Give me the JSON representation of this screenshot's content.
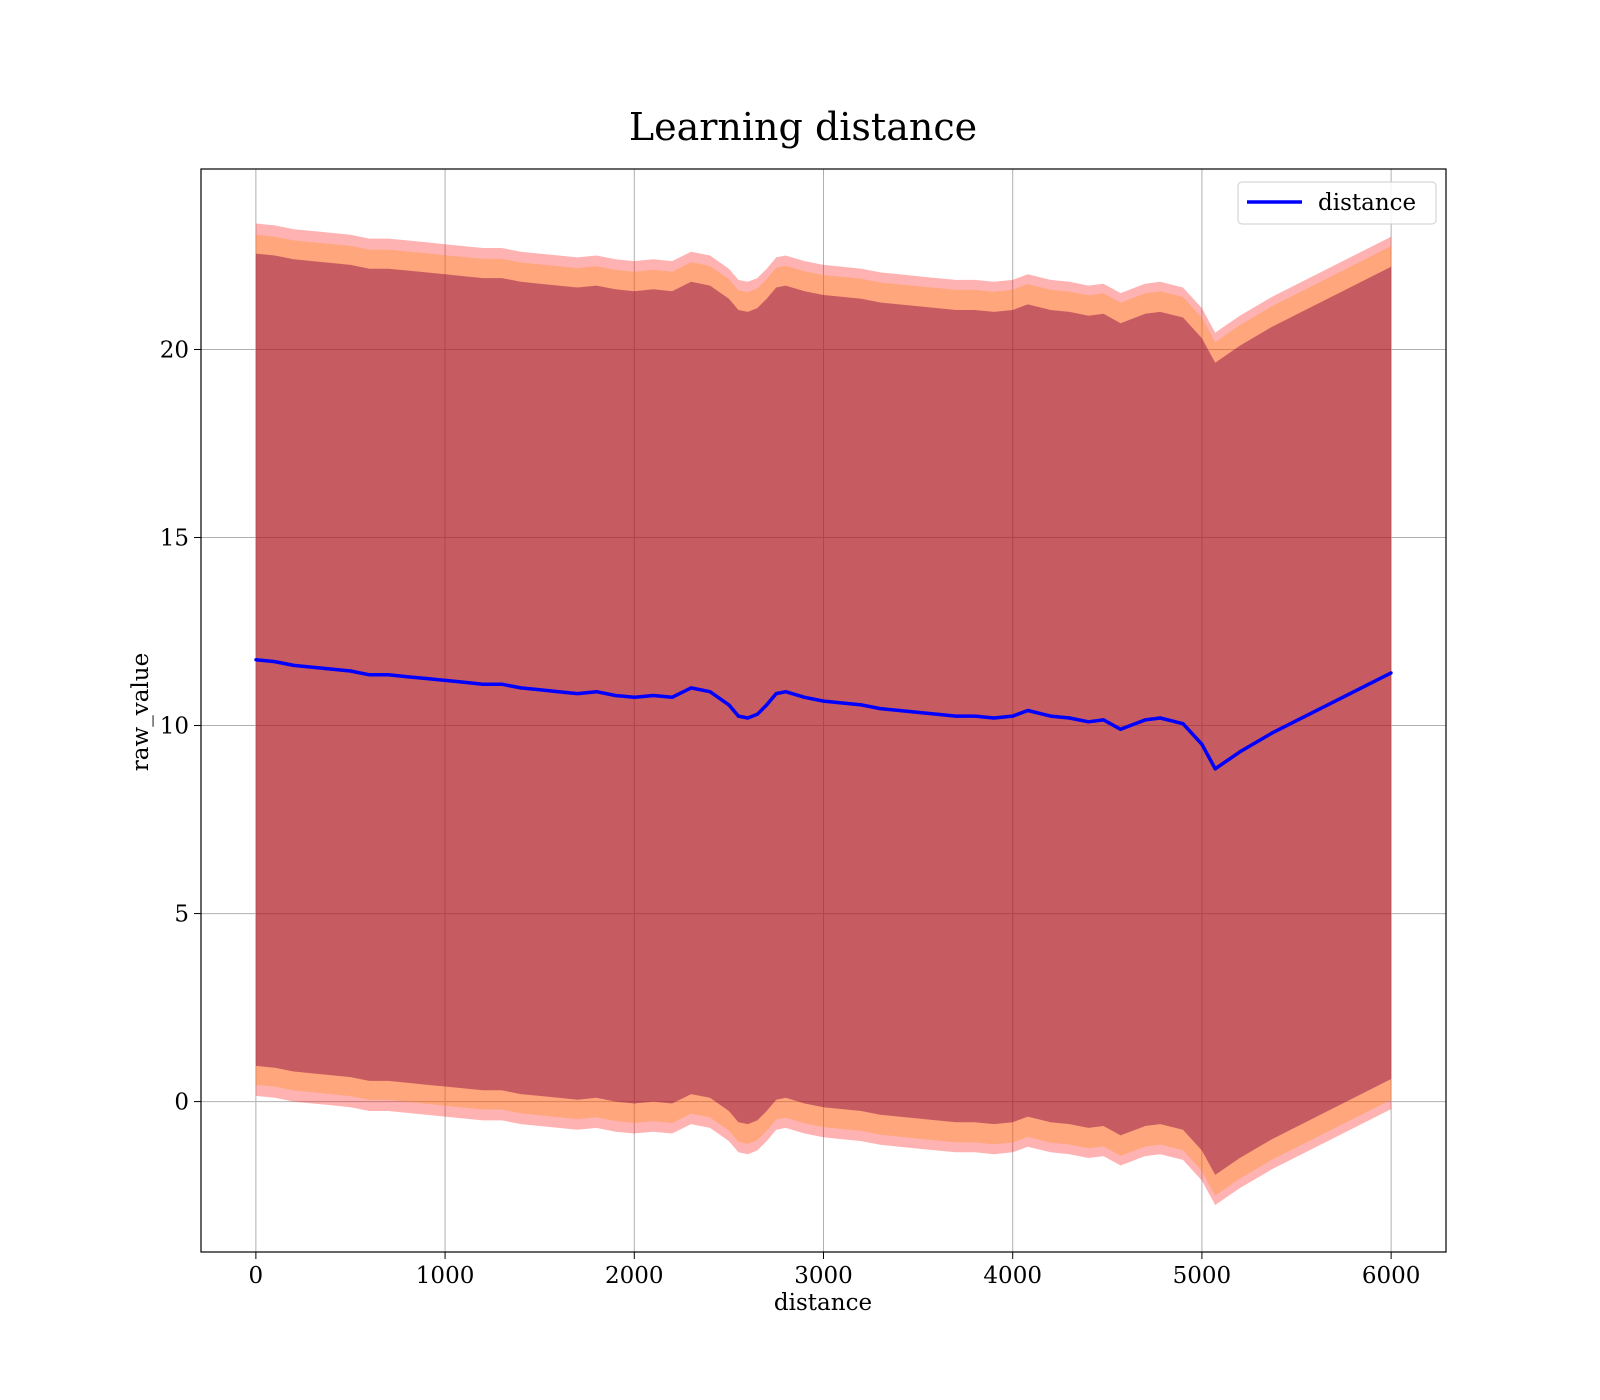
{
  "chart_data": {
    "type": "line",
    "title": "Learning distance",
    "xlabel": "distance",
    "ylabel": "raw_value",
    "xlim": [
      -290,
      6290
    ],
    "ylim": [
      -4.0,
      24.8
    ],
    "xticks": [
      0,
      1000,
      2000,
      3000,
      4000,
      5000,
      6000
    ],
    "yticks": [
      0,
      5,
      10,
      15,
      20
    ],
    "grid": true,
    "legend_position": "top-right",
    "colors": {
      "line": "#0000ff",
      "band_outer": "#ff0000",
      "band_middle": "#ff8c00",
      "band_inner": "#800040",
      "grid": "#b0b0b0"
    },
    "series": [
      {
        "name": "distance",
        "x": [
          0,
          100,
          200,
          300,
          400,
          500,
          600,
          700,
          800,
          900,
          1000,
          1100,
          1200,
          1300,
          1400,
          1500,
          1600,
          1700,
          1800,
          1900,
          2000,
          2100,
          2200,
          2300,
          2400,
          2500,
          2550,
          2600,
          2650,
          2700,
          2750,
          2800,
          2900,
          3000,
          3100,
          3200,
          3300,
          3400,
          3500,
          3600,
          3700,
          3800,
          3900,
          4000,
          4080,
          4200,
          4300,
          4400,
          4480,
          4570,
          4700,
          4780,
          4900,
          5000,
          5070,
          5200,
          5370,
          6000
        ],
        "values": [
          11.75,
          11.7,
          11.6,
          11.55,
          11.5,
          11.45,
          11.35,
          11.35,
          11.3,
          11.25,
          11.2,
          11.15,
          11.1,
          11.1,
          11.0,
          10.95,
          10.9,
          10.85,
          10.9,
          10.8,
          10.75,
          10.8,
          10.75,
          11.0,
          10.9,
          10.55,
          10.25,
          10.2,
          10.3,
          10.55,
          10.85,
          10.9,
          10.75,
          10.65,
          10.6,
          10.55,
          10.45,
          10.4,
          10.35,
          10.3,
          10.25,
          10.25,
          10.2,
          10.25,
          10.4,
          10.25,
          10.2,
          10.1,
          10.15,
          9.9,
          10.15,
          10.2,
          10.05,
          9.5,
          8.85,
          9.3,
          9.8,
          11.4
        ]
      }
    ],
    "bands": [
      {
        "half_width_start": 11.6,
        "half_width_end": 11.6
      },
      {
        "half_width_start": 11.3,
        "half_width_end": 11.35
      },
      {
        "half_width_start": 10.8,
        "half_width_end": 10.8
      }
    ]
  }
}
